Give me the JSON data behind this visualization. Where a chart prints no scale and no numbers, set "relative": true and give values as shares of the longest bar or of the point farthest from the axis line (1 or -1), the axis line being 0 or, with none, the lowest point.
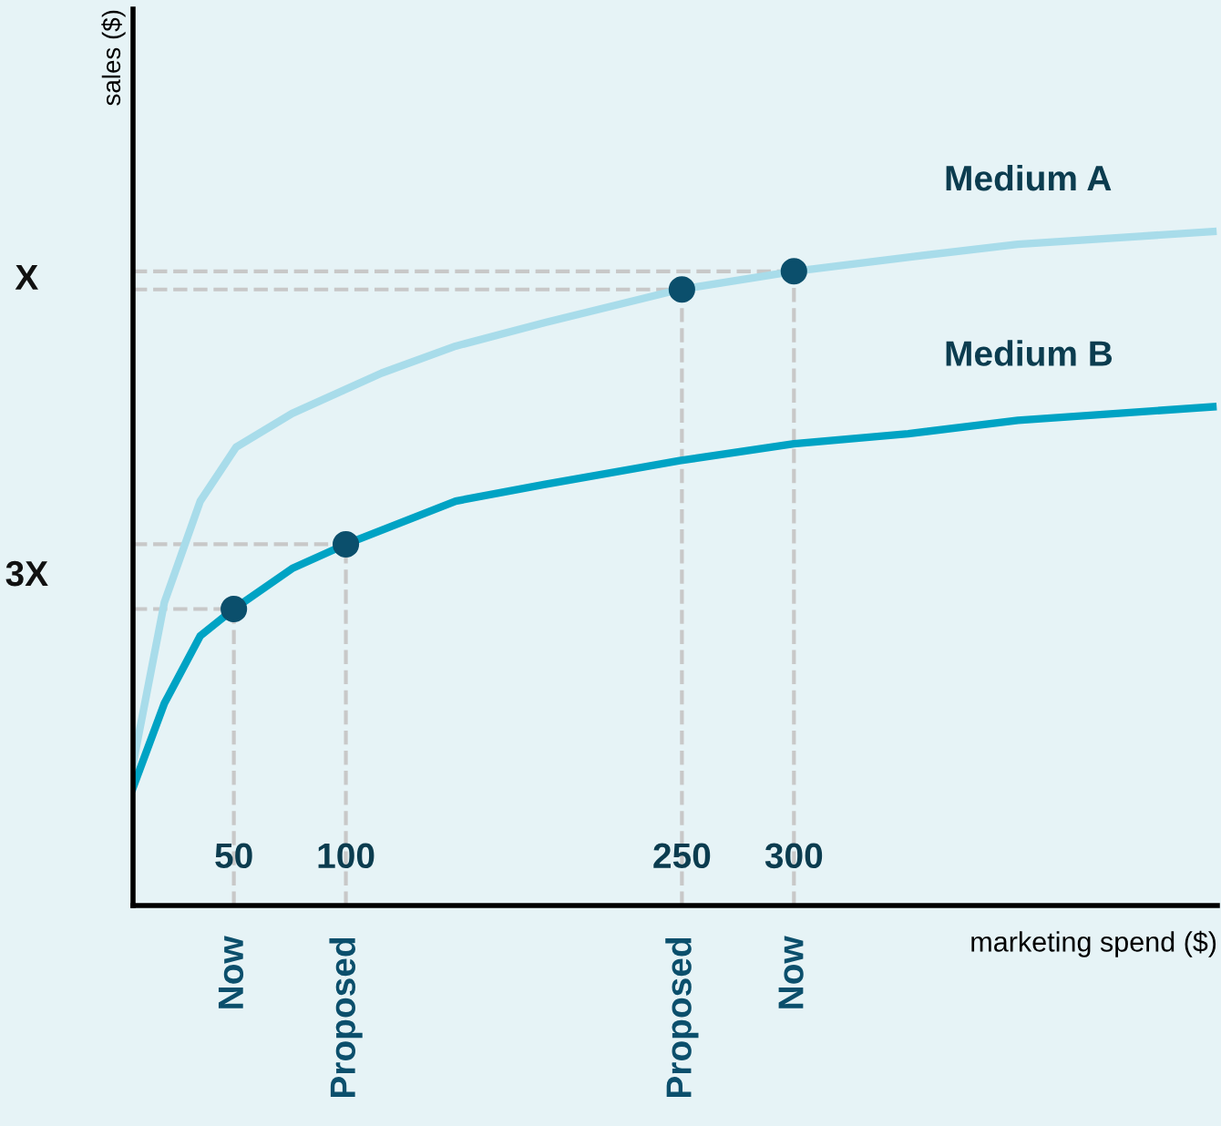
{
  "chart_data": {
    "type": "line",
    "relative": true,
    "xlabel": "marketing spend ($)",
    "ylabel": "sales ($)",
    "xlim": [
      5,
      489
    ],
    "xticks": [
      50,
      100,
      250,
      300
    ],
    "tick_labels": "x",
    "grid": false,
    "legend": false,
    "marker": "none",
    "line_style": "solid",
    "series": [
      {
        "name": "Medium A",
        "color": "#a8dcea",
        "x": [
          5,
          19,
          35,
          51,
          76,
          116,
          149,
          189,
          249,
          300,
          351,
          400,
          487
        ],
        "values": [
          0.21,
          0.45,
          0.6,
          0.68,
          0.73,
          0.79,
          0.83,
          0.865,
          0.914,
          0.941,
          0.962,
          0.981,
          1
        ]
      },
      {
        "name": "Medium B",
        "color": "#00a3c4",
        "x": [
          5,
          19,
          35,
          50,
          76,
          100,
          149,
          189,
          249,
          300,
          351,
          400,
          487
        ],
        "values": [
          0.175,
          0.3,
          0.4,
          0.44,
          0.5,
          0.536,
          0.6,
          0.625,
          0.66,
          0.685,
          0.7,
          0.72,
          0.74
        ]
      },
      {
        "type": "scatter",
        "color": "#0b4f6c",
        "marker": "circle",
        "x": [
          50,
          100,
          250,
          300
        ],
        "values": [
          0.44,
          0.536,
          0.914,
          0.941
        ]
      }
    ],
    "ref_lines": [
      {
        "axis": "x",
        "value": 50,
        "color": "#c8c8c8",
        "line_style": "dashed"
      },
      {
        "axis": "x",
        "value": 100,
        "color": "#c8c8c8",
        "line_style": "dashed"
      },
      {
        "axis": "x",
        "value": 250,
        "color": "#c8c8c8",
        "line_style": "dashed"
      },
      {
        "axis": "x",
        "value": 300,
        "color": "#c8c8c8",
        "line_style": "dashed"
      },
      {
        "axis": "y",
        "value": 0.44,
        "color": "#c8c8c8",
        "line_style": "dashed"
      },
      {
        "axis": "y",
        "value": 0.536,
        "color": "#c8c8c8",
        "line_style": "dashed"
      },
      {
        "axis": "y",
        "value": 0.914,
        "color": "#c8c8c8",
        "line_style": "dashed"
      },
      {
        "axis": "y",
        "value": 0.941,
        "color": "#c8c8c8",
        "line_style": "dashed"
      }
    ],
    "annotations": [
      "Now",
      "Proposed",
      "Proposed",
      "Now",
      "3X",
      "X"
    ]
  }
}
